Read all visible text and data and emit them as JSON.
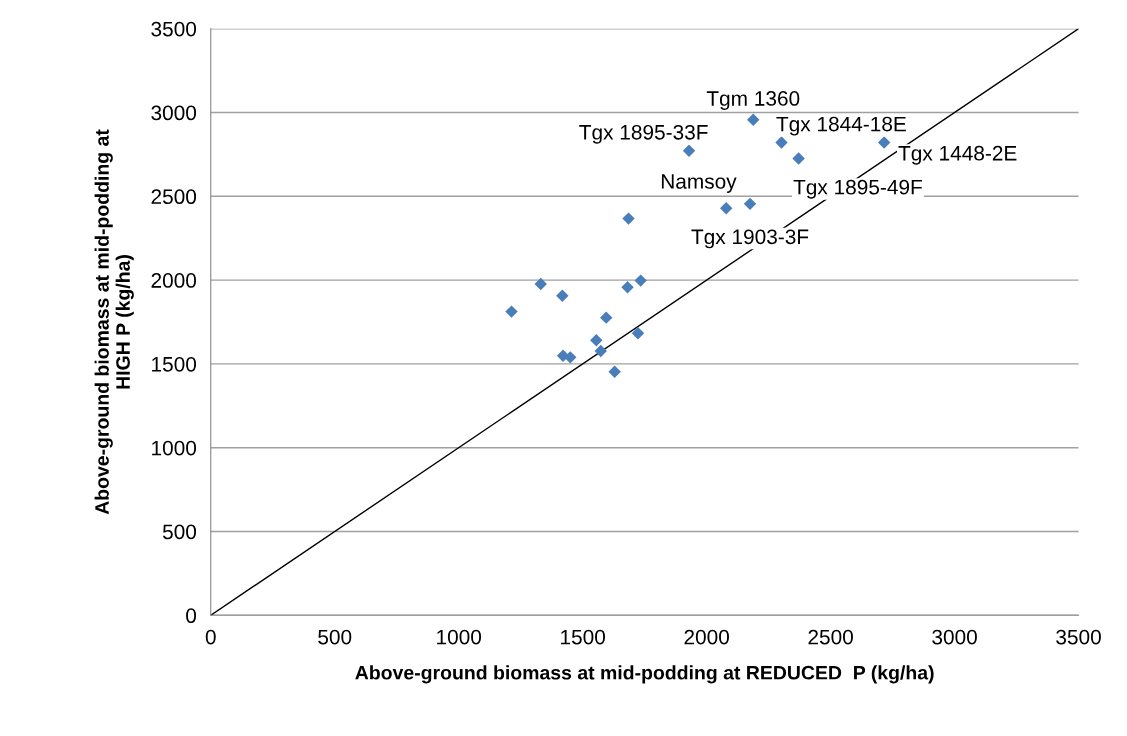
{
  "chart_data": {
    "type": "scatter",
    "xlabel": "Above-ground biomass at mid-podding at REDUCED  P (kg/ha)",
    "ylabel": "Above-ground biomass at mid-podding at\nHIGH P (kg/ha)",
    "series": [
      {
        "color": "#4a7ebb",
        "marker": "diamond",
        "x": [
          1213,
          1331,
          1418,
          1421,
          1450,
          1555,
          1573,
          1595,
          1629,
          1681,
          1723,
          1734,
          1685,
          2079,
          2175,
          1929,
          2188,
          2302,
          2371,
          2716
        ],
        "values": [
          1812,
          1977,
          1907,
          1549,
          1539,
          1641,
          1577,
          1776,
          1453,
          1957,
          1683,
          1997,
          2367,
          2429,
          2455,
          2772,
          2957,
          2821,
          2726,
          2821
        ]
      },
      {
        "type": "line",
        "color": "#000000",
        "marker": "none",
        "line_style": "solid",
        "x": [
          0,
          3500
        ],
        "values": [
          0,
          3500
        ]
      }
    ],
    "annotations": [
      {
        "text": "Tgm 1360",
        "x": 2188,
        "y": 2957
      },
      {
        "text": "Tgx 1844-18E",
        "x": 2302,
        "y": 2821
      },
      {
        "text": "Tgx 1448-2E",
        "x": 2716,
        "y": 2821
      },
      {
        "text": "Tgx 1895-49F",
        "x": 2371,
        "y": 2726
      },
      {
        "text": "Namsoy",
        "x": 2079,
        "y": 2429
      },
      {
        "text": "Tgx 1903-3F",
        "x": 2175,
        "y": 2455
      },
      {
        "text": "Tgx 1895-33F",
        "x": 1929,
        "y": 2772
      }
    ],
    "xlim": [
      0,
      3500
    ],
    "ylim": [
      0,
      3500
    ],
    "xticks": [
      0,
      500,
      1000,
      1500,
      2000,
      2500,
      3000,
      3500
    ],
    "yticks": [
      0,
      500,
      1000,
      1500,
      2000,
      2500,
      3000,
      3500
    ],
    "grid": "y",
    "legend": false
  }
}
